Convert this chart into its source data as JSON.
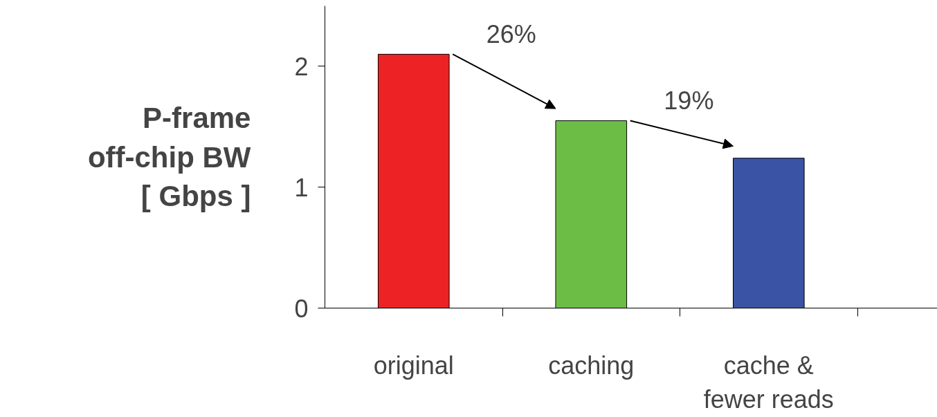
{
  "chart_data": {
    "type": "bar",
    "ylabel": "P-frame\noff-chip BW\n[ Gbps ]",
    "categories": [
      "original",
      "caching",
      "cache &\nfewer reads"
    ],
    "values": [
      2.1,
      1.55,
      1.24
    ],
    "colors": [
      "#ed2224",
      "#6cbd45",
      "#3a53a4"
    ],
    "ylim": [
      0,
      2.5
    ],
    "yticks": [
      0,
      1,
      2
    ],
    "annotations": [
      "26%",
      "19%"
    ]
  }
}
